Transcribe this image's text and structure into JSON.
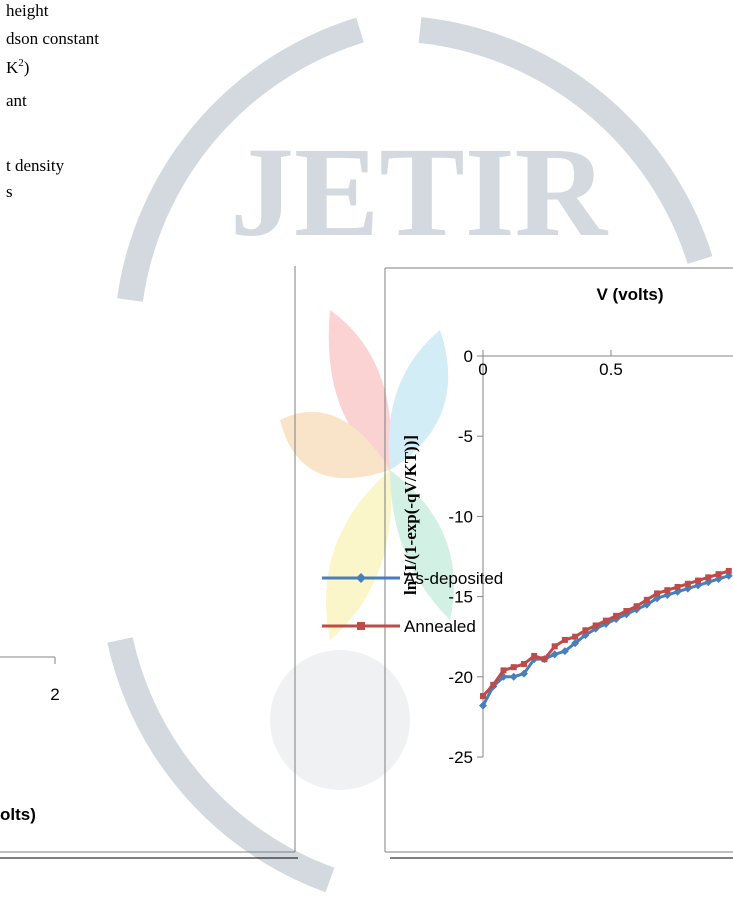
{
  "document": {
    "text_lines": [
      "height",
      "dson constant",
      "ant",
      "t density",
      "s"
    ],
    "units_line": {
      "base": "K",
      "sup": "2",
      "end": ")"
    },
    "watermark": "JETIR"
  },
  "chart_data": [
    {
      "type": "legend-panel",
      "xlabel": "olts)",
      "xticks": [
        2
      ],
      "series": [
        {
          "name": "As-deposited",
          "color": "#4a7ebb",
          "marker": "diamond"
        },
        {
          "name": "Annealed",
          "color": "#be4b48",
          "marker": "square"
        }
      ]
    },
    {
      "type": "line",
      "xlabel": "V (volts)",
      "ylabel": "ln [I/(1-exp(-qV/KT))]",
      "x": [
        0,
        0.04,
        0.08,
        0.12,
        0.16,
        0.2,
        0.24,
        0.28,
        0.32,
        0.36,
        0.4,
        0.44,
        0.48,
        0.52,
        0.56,
        0.6,
        0.64,
        0.68,
        0.72,
        0.76,
        0.8,
        0.84,
        0.88,
        0.92,
        0.96
      ],
      "xlim": [
        0,
        1
      ],
      "ylim": [
        -25,
        0
      ],
      "xticks": [
        0,
        0.5
      ],
      "yticks": [
        0,
        -5,
        -10,
        -15,
        -20,
        -25
      ],
      "series": [
        {
          "color": "#4a7ebb",
          "marker": "diamond",
          "values": [
            -21.8,
            -20.6,
            -20.0,
            -20.0,
            -19.8,
            -18.9,
            -18.9,
            -18.6,
            -18.4,
            -17.9,
            -17.4,
            -17.0,
            -16.7,
            -16.4,
            -16.1,
            -15.8,
            -15.5,
            -15.1,
            -14.9,
            -14.7,
            -14.5,
            -14.3,
            -14.1,
            -13.9,
            -13.7
          ]
        },
        {
          "color": "#be4b48",
          "marker": "square",
          "values": [
            -21.2,
            -20.5,
            -19.6,
            -19.4,
            -19.2,
            -18.7,
            -18.9,
            -18.1,
            -17.7,
            -17.5,
            -17.1,
            -16.8,
            -16.5,
            -16.2,
            -15.9,
            -15.6,
            -15.2,
            -14.8,
            -14.6,
            -14.4,
            -14.2,
            -14.0,
            -13.8,
            -13.6,
            -13.4
          ]
        }
      ]
    }
  ]
}
